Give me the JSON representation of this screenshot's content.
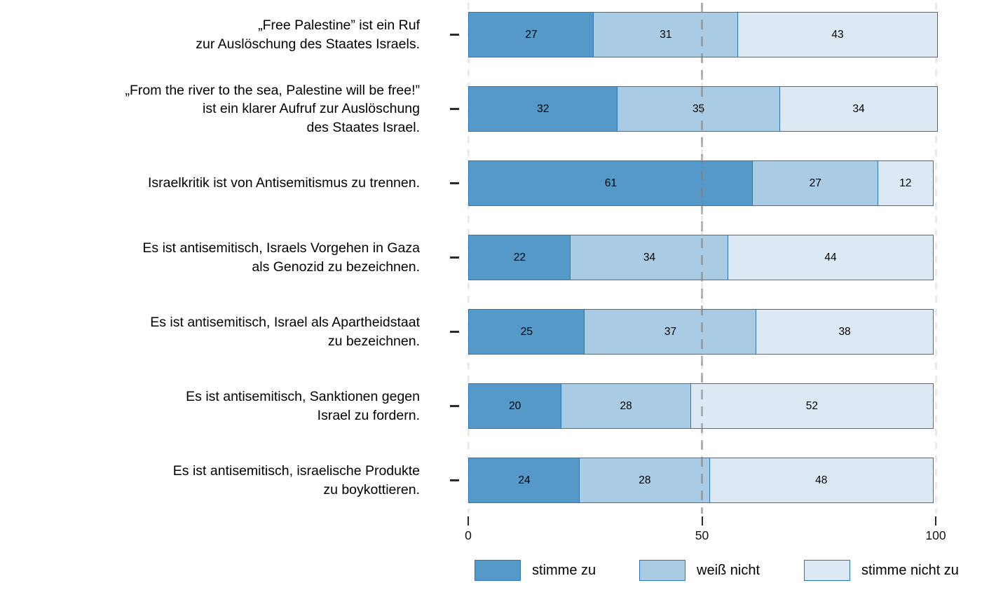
{
  "chart_data": {
    "type": "bar",
    "orientation": "horizontal",
    "stacked": true,
    "unit": "percent",
    "xlim": [
      0,
      100
    ],
    "x_ticks": [
      "0",
      "50",
      "100"
    ],
    "reference_line_x": 50,
    "grid": "dashed vertical gridlines at 0, 50, 100",
    "legend_position": "bottom",
    "categories": [
      {
        "lines": [
          "„Free Palestine” ist ein Ruf",
          "zur Auslöschung des Staates Israels."
        ]
      },
      {
        "lines": [
          "„From the river to the sea, Palestine will be free!”",
          "ist ein klarer Aufruf zur Auslöschung",
          "des Staates Israel."
        ]
      },
      {
        "lines": [
          "Israelkritik ist von Antisemitismus zu trennen."
        ]
      },
      {
        "lines": [
          "Es ist antisemitisch, Israels Vorgehen in Gaza",
          "als Genozid zu bezeichnen."
        ]
      },
      {
        "lines": [
          "Es ist antisemitisch, Israel als Apartheidstaat",
          "zu bezeichnen."
        ]
      },
      {
        "lines": [
          "Es ist antisemitisch, Sanktionen gegen",
          "Israel zu fordern."
        ]
      },
      {
        "lines": [
          "Es ist antisemitisch, israelische Produkte",
          "zu boykottieren."
        ]
      }
    ],
    "series": [
      {
        "name": "stimme zu",
        "color": "#5499c8",
        "values": [
          27,
          32,
          61,
          22,
          25,
          20,
          24
        ]
      },
      {
        "name": "weiß nicht",
        "color": "#a9cbe3",
        "values": [
          31,
          35,
          27,
          34,
          37,
          28,
          28
        ]
      },
      {
        "name": "stimme nicht zu",
        "color": "#dce9f5",
        "values": [
          43,
          34,
          12,
          44,
          38,
          52,
          48
        ]
      }
    ],
    "bar_border_color": "#2e75b5",
    "value_label_color": "#000000",
    "reference_line_color": "#7d7d7d",
    "gridline_color": "#eaeaea"
  }
}
